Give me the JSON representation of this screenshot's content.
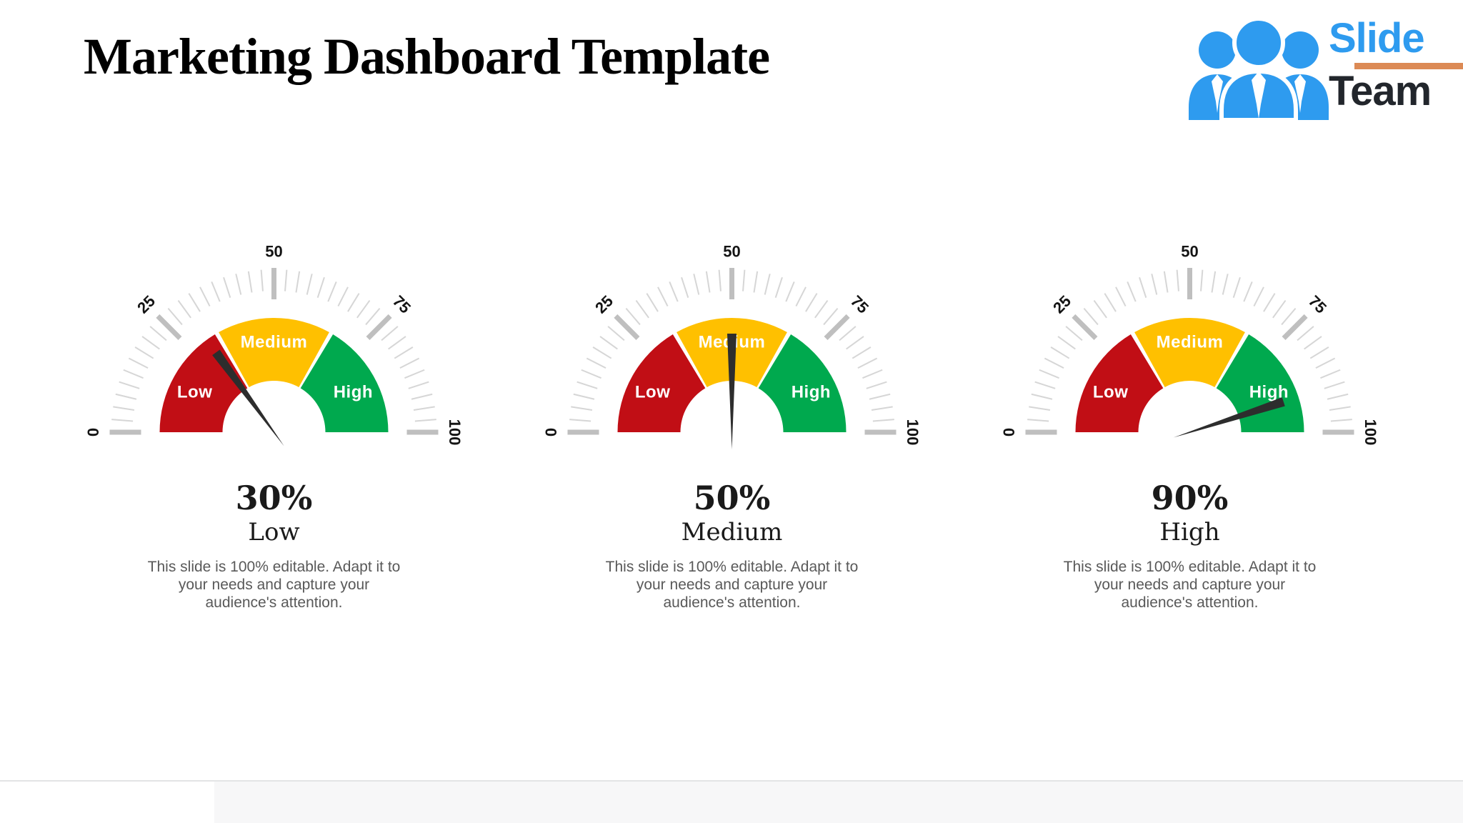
{
  "page": {
    "title": "Marketing Dashboard Template"
  },
  "logo": {
    "word_top": "Slide",
    "word_bottom": "Team",
    "colors": {
      "blue": "#2E9BEF",
      "orange": "#DC8A55",
      "dark": "#22262C"
    }
  },
  "chart_data": [
    {
      "type": "gauge",
      "value": 30,
      "value_label": "30%",
      "status_label": "Low",
      "description_lines": [
        "This slide is 100% editable. Adapt it to",
        "your needs and capture your",
        "audience's attention."
      ],
      "axis": {
        "min": 0,
        "max": 100,
        "major_ticks": [
          0,
          25,
          50,
          75,
          100
        ],
        "minor_step": 2.5,
        "sweep_degrees": 180
      },
      "segments": [
        {
          "label": "Low",
          "from": 0,
          "to": 33.33,
          "color": "#C10E15"
        },
        {
          "label": "Medium",
          "from": 33.33,
          "to": 66.67,
          "color": "#FFC000"
        },
        {
          "label": "High",
          "from": 66.67,
          "to": 100,
          "color": "#00A94E"
        }
      ],
      "needle_color": "#2D2D2D",
      "tick_colors": {
        "major": "#BFBFBF",
        "minor": "#D6D6D6",
        "label": "#141414"
      }
    },
    {
      "type": "gauge",
      "value": 50,
      "value_label": "50%",
      "status_label": "Medium",
      "description_lines": [
        "This slide is 100% editable. Adapt it to",
        "your needs and capture your",
        "audience's attention."
      ],
      "axis": {
        "min": 0,
        "max": 100,
        "major_ticks": [
          0,
          25,
          50,
          75,
          100
        ],
        "minor_step": 2.5,
        "sweep_degrees": 180
      },
      "segments": [
        {
          "label": "Low",
          "from": 0,
          "to": 33.33,
          "color": "#C10E15"
        },
        {
          "label": "Medium",
          "from": 33.33,
          "to": 66.67,
          "color": "#FFC000"
        },
        {
          "label": "High",
          "from": 66.67,
          "to": 100,
          "color": "#00A94E"
        }
      ],
      "needle_color": "#2D2D2D",
      "tick_colors": {
        "major": "#BFBFBF",
        "minor": "#D6D6D6",
        "label": "#141414"
      }
    },
    {
      "type": "gauge",
      "value": 90,
      "value_label": "90%",
      "status_label": "High",
      "description_lines": [
        "This slide is 100% editable. Adapt it to",
        "your needs and capture your",
        "audience's attention."
      ],
      "axis": {
        "min": 0,
        "max": 100,
        "major_ticks": [
          0,
          25,
          50,
          75,
          100
        ],
        "minor_step": 2.5,
        "sweep_degrees": 180
      },
      "segments": [
        {
          "label": "Low",
          "from": 0,
          "to": 33.33,
          "color": "#C10E15"
        },
        {
          "label": "Medium",
          "from": 33.33,
          "to": 66.67,
          "color": "#FFC000"
        },
        {
          "label": "High",
          "from": 66.67,
          "to": 100,
          "color": "#00A94E"
        }
      ],
      "needle_color": "#2D2D2D",
      "tick_colors": {
        "major": "#BFBFBF",
        "minor": "#D6D6D6",
        "label": "#141414"
      }
    }
  ]
}
